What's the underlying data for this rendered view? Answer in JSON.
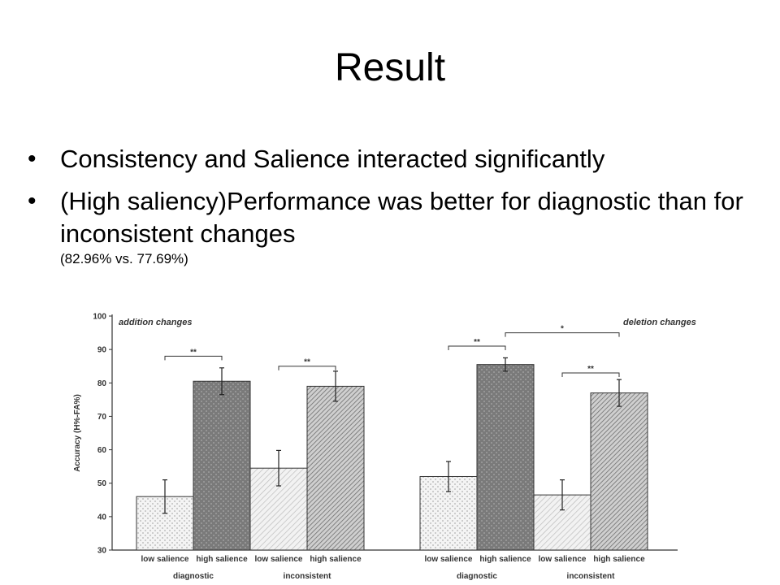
{
  "slide": {
    "title": "Result",
    "bullets": [
      {
        "text": "Consistency and Salience interacted significantly",
        "note": ""
      },
      {
        "text": "(High saliency)Performance was better for diagnostic than for inconsistent changes",
        "note": "(82.96% vs. 77.69%)"
      }
    ]
  },
  "chart_data": [
    {
      "type": "bar",
      "panel_label": "addition changes",
      "ylabel": "Accuracy (H%-FA%)",
      "ylim": [
        30,
        100
      ],
      "yticks": [
        30,
        40,
        50,
        60,
        70,
        80,
        90,
        100
      ],
      "categories": [
        "low salience",
        "high salience",
        "low salience",
        "high salience"
      ],
      "groups": [
        "diagnostic",
        "inconsistent"
      ],
      "values": [
        46,
        80.5,
        54.5,
        79
      ],
      "errors": [
        5,
        4,
        5.3,
        4.5
      ],
      "fills": [
        "dots-light",
        "dots-dark",
        "hatch-light",
        "hatch-dark"
      ],
      "significance": [
        {
          "from": 0,
          "to": 1,
          "label": "**",
          "level": 88
        },
        {
          "from": 2,
          "to": 3,
          "label": "**",
          "level": 85
        }
      ]
    },
    {
      "type": "bar",
      "panel_label": "deletion changes",
      "ylim": [
        30,
        100
      ],
      "categories": [
        "low salience",
        "high salience",
        "low salience",
        "high salience"
      ],
      "groups": [
        "diagnostic",
        "inconsistent"
      ],
      "values": [
        52,
        85.5,
        46.5,
        77
      ],
      "errors": [
        4.5,
        2,
        4.5,
        4
      ],
      "fills": [
        "dots-light",
        "dots-dark",
        "hatch-light",
        "hatch-dark"
      ],
      "significance": [
        {
          "from": 1,
          "to": 3,
          "label": "*",
          "level": 95
        },
        {
          "from": 0,
          "to": 1,
          "label": "**",
          "level": 91
        },
        {
          "from": 2,
          "to": 3,
          "label": "**",
          "level": 83
        }
      ]
    }
  ]
}
